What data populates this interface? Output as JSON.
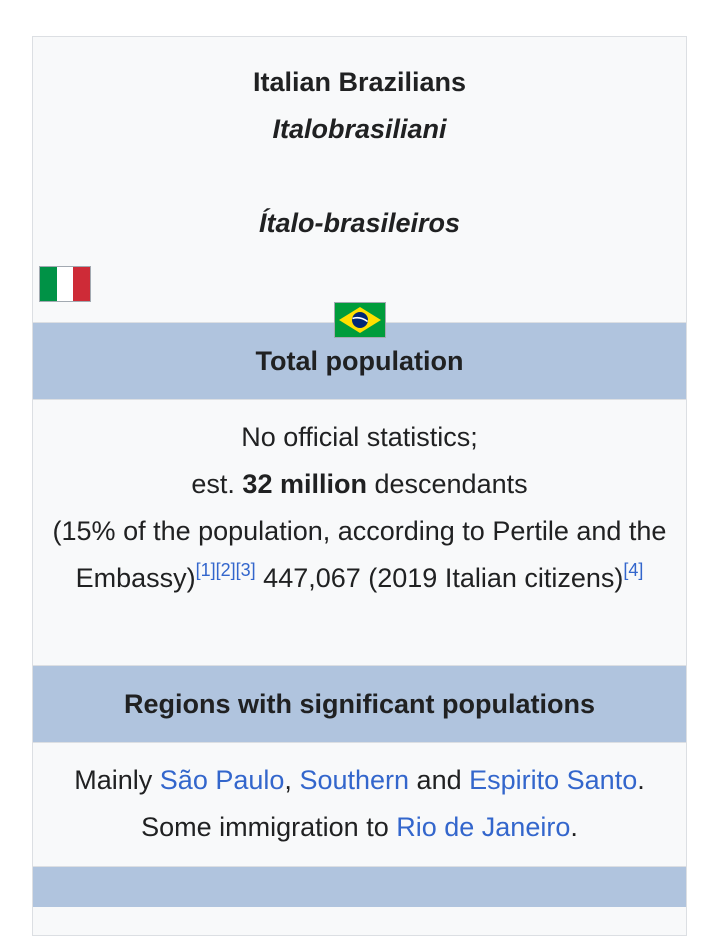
{
  "infobox": {
    "title": "Italian Brazilians",
    "alt_name_1": "Italobrasiliani",
    "alt_name_2": "Ítalo-brasileiros",
    "flags": {
      "italy": {
        "colors": [
          "#009246",
          "#ffffff",
          "#ce2b37"
        ]
      },
      "brazil": {
        "colors": [
          "#009c3b",
          "#ffdf00",
          "#002776"
        ]
      }
    },
    "total_population": {
      "header": "Total population",
      "line1": "No official statistics;",
      "line2_prefix": "est.",
      "line2_bold": "32 million",
      "line2_suffix": "descendants",
      "line3": "(15% of the population, according to Pertile and the Embassy)",
      "refs": [
        "[1]",
        "[2]",
        "[3]"
      ],
      "line4": "447,067 (2019 Italian citizens)",
      "ref4": "[4]"
    },
    "regions": {
      "header": "Regions with significant populations",
      "prefix": "Mainly",
      "link1": "São Paulo",
      "sep1": ",",
      "link2": "Southern",
      "and": "and",
      "link3": "Espirito Santo",
      "period1": ".",
      "some": "Some immigration to",
      "link4": "Rio de Janeiro",
      "period2": "."
    }
  },
  "colors": {
    "header_bg": "#b0c4de",
    "link": "#3366cc",
    "box_bg": "#f8f9fa"
  }
}
